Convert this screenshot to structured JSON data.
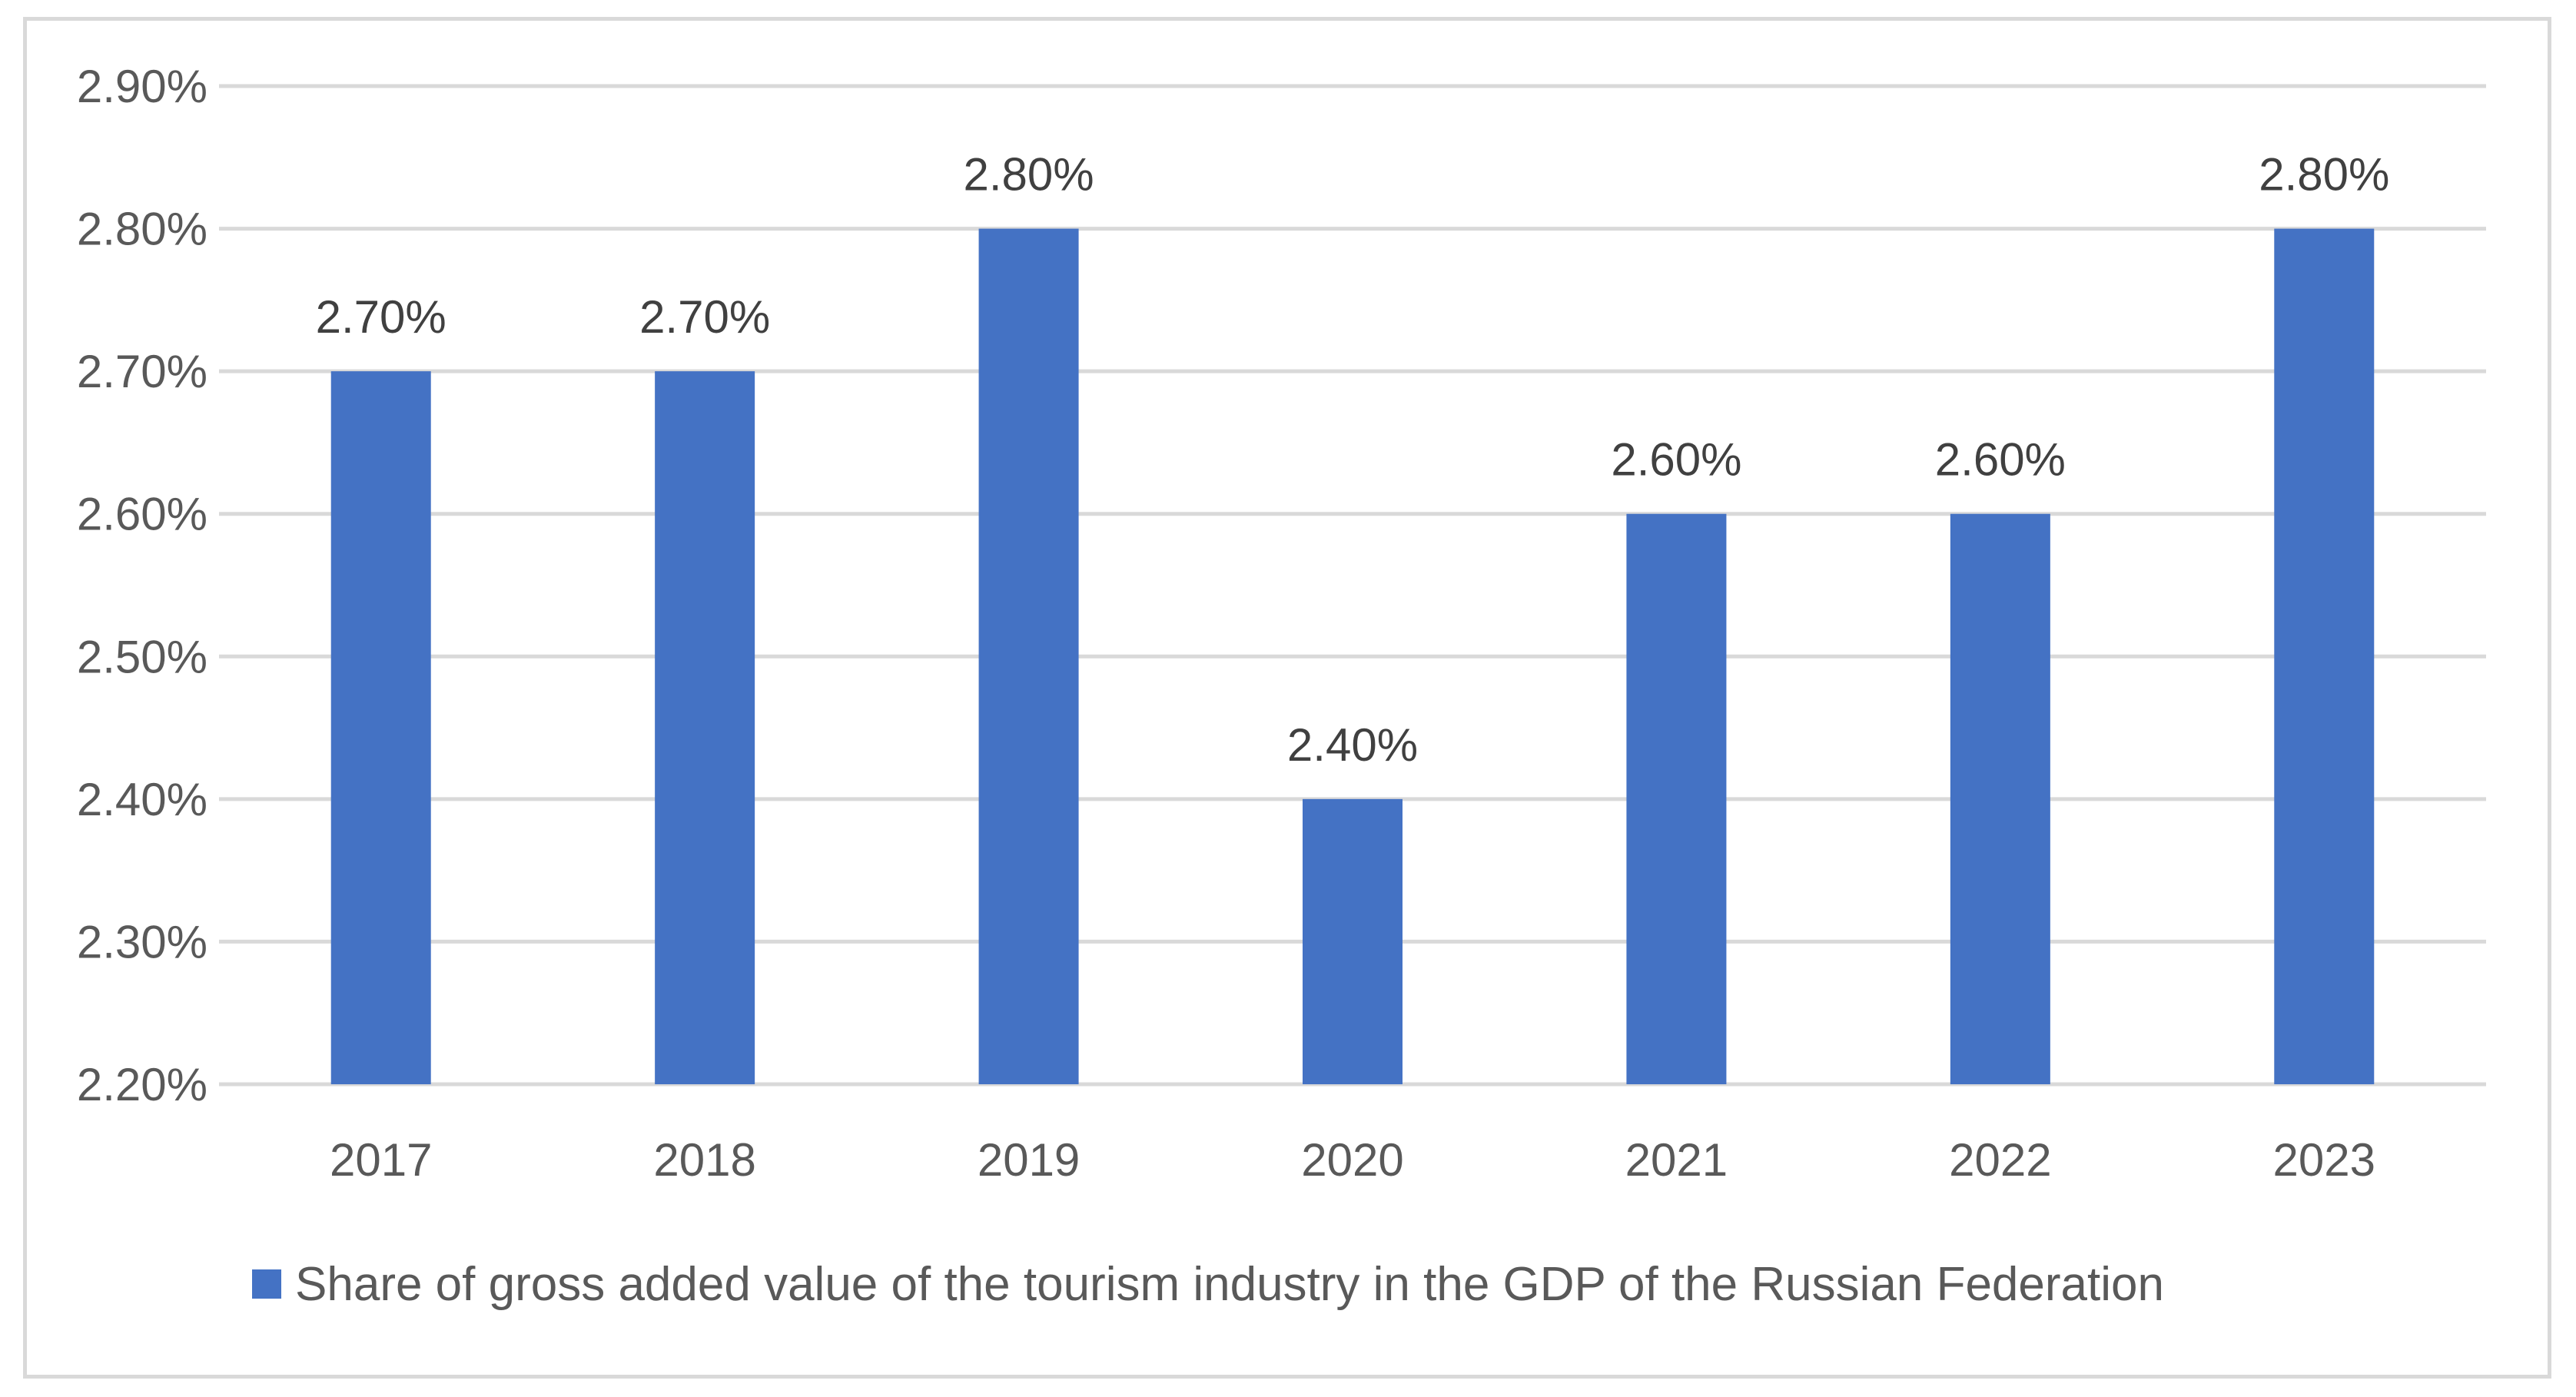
{
  "chart_data": {
    "type": "bar",
    "categories": [
      "2017",
      "2018",
      "2019",
      "2020",
      "2021",
      "2022",
      "2023"
    ],
    "series": [
      {
        "name": "Share of gross added value of the tourism industry in the GDP of the Russian Federation",
        "values": [
          2.7,
          2.7,
          2.8,
          2.4,
          2.6,
          2.6,
          2.8
        ],
        "data_labels": [
          "2.70%",
          "2.70%",
          "2.80%",
          "2.40%",
          "2.60%",
          "2.60%",
          "2.80%"
        ]
      }
    ],
    "ylim": [
      2.2,
      2.9
    ],
    "y_ticks": [
      2.2,
      2.3,
      2.4,
      2.5,
      2.6,
      2.7,
      2.8,
      2.9
    ],
    "y_tick_labels": [
      "2.20%",
      "2.30%",
      "2.40%",
      "2.50%",
      "2.60%",
      "2.70%",
      "2.80%",
      "2.90%"
    ],
    "title": "",
    "xlabel": "",
    "ylabel": "",
    "grid": true,
    "legend_position": "bottom",
    "colors": {
      "bar": "#4472c4",
      "grid": "#d9d9d9",
      "text": "#595959"
    }
  }
}
